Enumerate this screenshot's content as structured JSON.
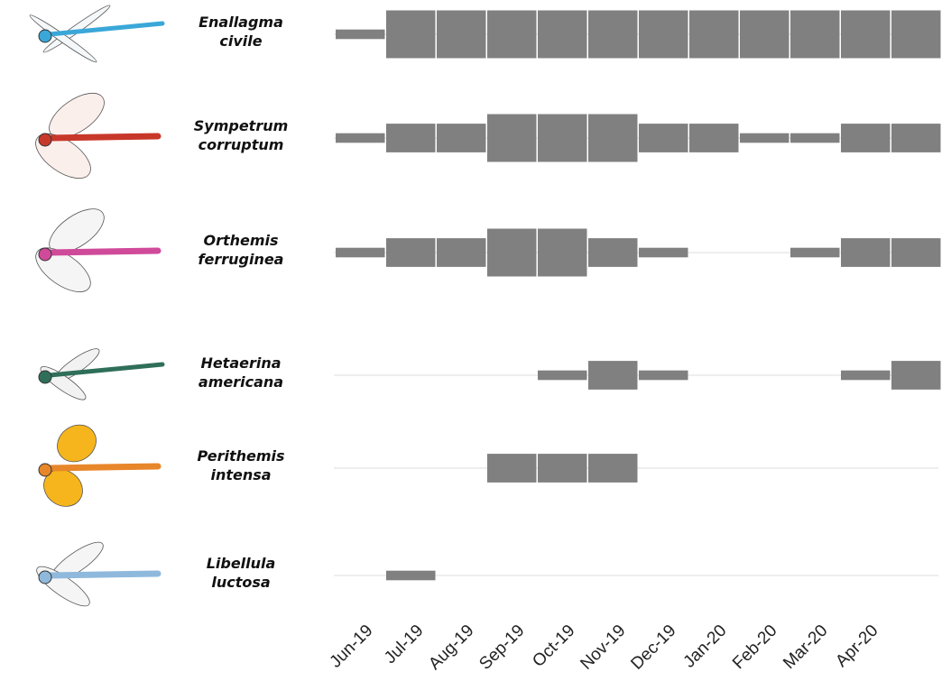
{
  "chart_data": {
    "type": "kite",
    "categories": [
      "Jun-19",
      "Jul-19",
      "Aug-19",
      "Sep-19",
      "Oct-19",
      "Nov-19",
      "Dec-19",
      "Jan-20",
      "Feb-20",
      "Mar-20",
      "Apr-20",
      null
    ],
    "color": "#808080",
    "series": [
      {
        "name": "Enallagma civile",
        "values": [
          1,
          5,
          5,
          5,
          5,
          5,
          5,
          5,
          5,
          5,
          5,
          5
        ]
      },
      {
        "name": "Sympetrum corruptum",
        "values": [
          1,
          3,
          3,
          5,
          5,
          5,
          3,
          3,
          1,
          1,
          3,
          3
        ]
      },
      {
        "name": "Orthemis ferruginea",
        "values": [
          1,
          3,
          3,
          5,
          5,
          3,
          1,
          0,
          0,
          1,
          3,
          3
        ]
      },
      {
        "name": "Hetaerina americana",
        "values": [
          0,
          0,
          0,
          0,
          1,
          3,
          1,
          0,
          0,
          0,
          1,
          3
        ]
      },
      {
        "name": "Perithemis intensa",
        "values": [
          0,
          0,
          0,
          3,
          3,
          3,
          0,
          0,
          0,
          0,
          0,
          0
        ]
      },
      {
        "name": "Libellula luctosa",
        "values": [
          0,
          1,
          0,
          0,
          0,
          0,
          0,
          0,
          0,
          0,
          0,
          0
        ]
      }
    ]
  }
}
